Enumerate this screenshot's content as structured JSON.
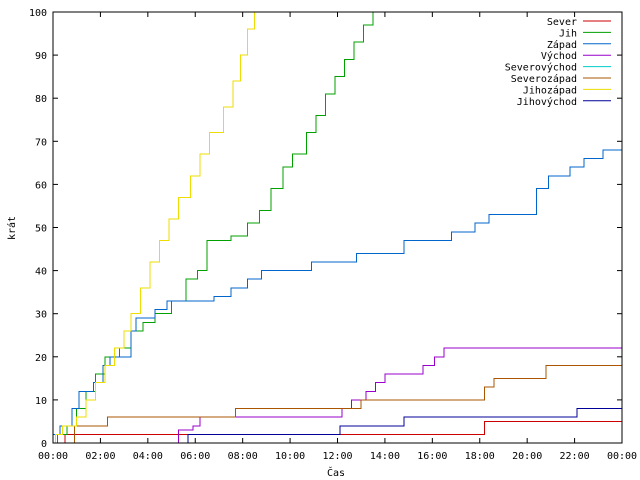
{
  "chart_data": {
    "type": "line",
    "xlabel": "Čas",
    "ylabel": "krát",
    "xlim": [
      0,
      24
    ],
    "ylim": [
      0,
      100
    ],
    "x_ticks": [
      {
        "value": 0,
        "label": "00:00"
      },
      {
        "value": 2,
        "label": "02:00"
      },
      {
        "value": 4,
        "label": "04:00"
      },
      {
        "value": 6,
        "label": "06:00"
      },
      {
        "value": 8,
        "label": "08:00"
      },
      {
        "value": 10,
        "label": "10:00"
      },
      {
        "value": 12,
        "label": "12:00"
      },
      {
        "value": 14,
        "label": "14:00"
      },
      {
        "value": 16,
        "label": "16:00"
      },
      {
        "value": 18,
        "label": "18:00"
      },
      {
        "value": 20,
        "label": "20:00"
      },
      {
        "value": 22,
        "label": "22:00"
      },
      {
        "value": 24,
        "label": "00:00"
      }
    ],
    "y_ticks": [
      0,
      10,
      20,
      30,
      40,
      50,
      60,
      70,
      80,
      90,
      100
    ],
    "legend_position": "top-right",
    "grid": false,
    "series": [
      {
        "name": "Sever",
        "color": "#cc0000",
        "points": [
          [
            0.5,
            0
          ],
          [
            0.5,
            2
          ],
          [
            18.2,
            2
          ],
          [
            18.2,
            5
          ],
          [
            24,
            5
          ]
        ]
      },
      {
        "name": "Jih",
        "color": "#00a000",
        "points": [
          [
            0.2,
            0
          ],
          [
            0.2,
            2
          ],
          [
            0.6,
            2
          ],
          [
            0.6,
            4
          ],
          [
            1.0,
            4
          ],
          [
            1.0,
            8
          ],
          [
            1.4,
            8
          ],
          [
            1.4,
            12
          ],
          [
            1.8,
            12
          ],
          [
            1.8,
            16
          ],
          [
            2.2,
            16
          ],
          [
            2.2,
            20
          ],
          [
            2.8,
            20
          ],
          [
            2.8,
            22
          ],
          [
            3.3,
            22
          ],
          [
            3.3,
            26
          ],
          [
            3.8,
            26
          ],
          [
            3.8,
            28
          ],
          [
            4.3,
            28
          ],
          [
            4.3,
            30
          ],
          [
            5.0,
            30
          ],
          [
            5.0,
            33
          ],
          [
            5.6,
            33
          ],
          [
            5.6,
            38
          ],
          [
            6.1,
            38
          ],
          [
            6.1,
            40
          ],
          [
            6.5,
            40
          ],
          [
            6.5,
            47
          ],
          [
            7.5,
            47
          ],
          [
            7.5,
            48
          ],
          [
            8.2,
            48
          ],
          [
            8.2,
            51
          ],
          [
            8.7,
            51
          ],
          [
            8.7,
            54
          ],
          [
            9.2,
            54
          ],
          [
            9.2,
            59
          ],
          [
            9.7,
            59
          ],
          [
            9.7,
            64
          ],
          [
            10.1,
            64
          ],
          [
            10.1,
            67
          ],
          [
            10.7,
            67
          ],
          [
            10.7,
            72
          ],
          [
            11.1,
            72
          ],
          [
            11.1,
            76
          ],
          [
            11.5,
            76
          ],
          [
            11.5,
            81
          ],
          [
            11.9,
            81
          ],
          [
            11.9,
            85
          ],
          [
            12.3,
            85
          ],
          [
            12.3,
            89
          ],
          [
            12.7,
            89
          ],
          [
            12.7,
            93
          ],
          [
            13.1,
            93
          ],
          [
            13.1,
            97
          ],
          [
            13.5,
            97
          ],
          [
            13.5,
            100
          ]
        ]
      },
      {
        "name": "Západ",
        "color": "#0066cc",
        "points": [
          [
            0,
            0
          ],
          [
            0,
            2
          ],
          [
            0.3,
            2
          ],
          [
            0.3,
            4
          ],
          [
            0.8,
            4
          ],
          [
            0.8,
            8
          ],
          [
            1.1,
            8
          ],
          [
            1.1,
            12
          ],
          [
            1.7,
            12
          ],
          [
            1.7,
            14
          ],
          [
            2.1,
            14
          ],
          [
            2.1,
            18
          ],
          [
            2.4,
            18
          ],
          [
            2.4,
            20
          ],
          [
            3.3,
            20
          ],
          [
            3.3,
            26
          ],
          [
            3.5,
            26
          ],
          [
            3.5,
            29
          ],
          [
            4.3,
            29
          ],
          [
            4.3,
            31
          ],
          [
            4.8,
            31
          ],
          [
            4.8,
            33
          ],
          [
            6.8,
            33
          ],
          [
            6.8,
            34
          ],
          [
            7.5,
            34
          ],
          [
            7.5,
            36
          ],
          [
            8.2,
            36
          ],
          [
            8.2,
            38
          ],
          [
            8.8,
            38
          ],
          [
            8.8,
            40
          ],
          [
            10.9,
            40
          ],
          [
            10.9,
            42
          ],
          [
            12.8,
            42
          ],
          [
            12.8,
            44
          ],
          [
            14.8,
            44
          ],
          [
            14.8,
            47
          ],
          [
            16.8,
            47
          ],
          [
            16.8,
            49
          ],
          [
            17.8,
            49
          ],
          [
            17.8,
            51
          ],
          [
            18.4,
            51
          ],
          [
            18.4,
            53
          ],
          [
            20.4,
            53
          ],
          [
            20.4,
            59
          ],
          [
            20.9,
            59
          ],
          [
            20.9,
            62
          ],
          [
            21.8,
            62
          ],
          [
            21.8,
            64
          ],
          [
            22.4,
            64
          ],
          [
            22.4,
            66
          ],
          [
            23.2,
            66
          ],
          [
            23.2,
            68
          ],
          [
            24,
            68
          ]
        ]
      },
      {
        "name": "Východ",
        "color": "#9900cc",
        "points": [
          [
            5.3,
            0
          ],
          [
            5.3,
            3
          ],
          [
            5.9,
            3
          ],
          [
            5.9,
            4
          ],
          [
            6.2,
            4
          ],
          [
            6.2,
            6
          ],
          [
            12.2,
            6
          ],
          [
            12.2,
            8
          ],
          [
            12.6,
            8
          ],
          [
            12.6,
            10
          ],
          [
            13.2,
            10
          ],
          [
            13.2,
            12
          ],
          [
            13.6,
            12
          ],
          [
            13.6,
            14
          ],
          [
            14.0,
            14
          ],
          [
            14.0,
            16
          ],
          [
            15.6,
            16
          ],
          [
            15.6,
            18
          ],
          [
            16.1,
            18
          ],
          [
            16.1,
            20
          ],
          [
            16.5,
            20
          ],
          [
            16.5,
            22
          ],
          [
            24,
            22
          ]
        ]
      },
      {
        "name": "Severovýchod",
        "color": "#00cccc",
        "points": []
      },
      {
        "name": "Severozápad",
        "color": "#aa5500",
        "points": [
          [
            0.9,
            0
          ],
          [
            0.9,
            4
          ],
          [
            2.3,
            4
          ],
          [
            2.3,
            6
          ],
          [
            7.7,
            6
          ],
          [
            7.7,
            8
          ],
          [
            13.0,
            8
          ],
          [
            13.0,
            10
          ],
          [
            18.2,
            10
          ],
          [
            18.2,
            13
          ],
          [
            18.6,
            13
          ],
          [
            18.6,
            15
          ],
          [
            20.8,
            15
          ],
          [
            20.8,
            18
          ],
          [
            24,
            18
          ]
        ]
      },
      {
        "name": "Jihozápad",
        "color": "#eedd00",
        "points": [
          [
            0.1,
            0
          ],
          [
            0.1,
            2
          ],
          [
            0.4,
            2
          ],
          [
            0.4,
            4
          ],
          [
            1.0,
            4
          ],
          [
            1.0,
            6
          ],
          [
            1.4,
            6
          ],
          [
            1.4,
            10
          ],
          [
            1.8,
            10
          ],
          [
            1.8,
            14
          ],
          [
            2.2,
            14
          ],
          [
            2.2,
            18
          ],
          [
            2.6,
            18
          ],
          [
            2.6,
            22
          ],
          [
            3.0,
            22
          ],
          [
            3.0,
            26
          ],
          [
            3.3,
            26
          ],
          [
            3.3,
            30
          ],
          [
            3.7,
            30
          ],
          [
            3.7,
            36
          ],
          [
            4.1,
            36
          ],
          [
            4.1,
            42
          ],
          [
            4.5,
            42
          ],
          [
            4.5,
            47
          ],
          [
            4.9,
            47
          ],
          [
            4.9,
            52
          ],
          [
            5.3,
            52
          ],
          [
            5.3,
            57
          ],
          [
            5.8,
            57
          ],
          [
            5.8,
            62
          ],
          [
            6.2,
            62
          ],
          [
            6.2,
            67
          ],
          [
            6.6,
            67
          ],
          [
            6.6,
            72
          ],
          [
            7.2,
            72
          ],
          [
            7.2,
            78
          ],
          [
            7.6,
            78
          ],
          [
            7.6,
            84
          ],
          [
            7.9,
            84
          ],
          [
            7.9,
            90
          ],
          [
            8.2,
            90
          ],
          [
            8.2,
            96
          ],
          [
            8.5,
            96
          ],
          [
            8.5,
            100
          ]
        ]
      },
      {
        "name": "Jihovýchod",
        "color": "#000099",
        "points": [
          [
            5.7,
            0
          ],
          [
            5.7,
            2
          ],
          [
            12.1,
            2
          ],
          [
            12.1,
            4
          ],
          [
            14.8,
            4
          ],
          [
            14.8,
            6
          ],
          [
            22.1,
            6
          ],
          [
            22.1,
            8
          ],
          [
            24,
            8
          ]
        ]
      }
    ]
  }
}
